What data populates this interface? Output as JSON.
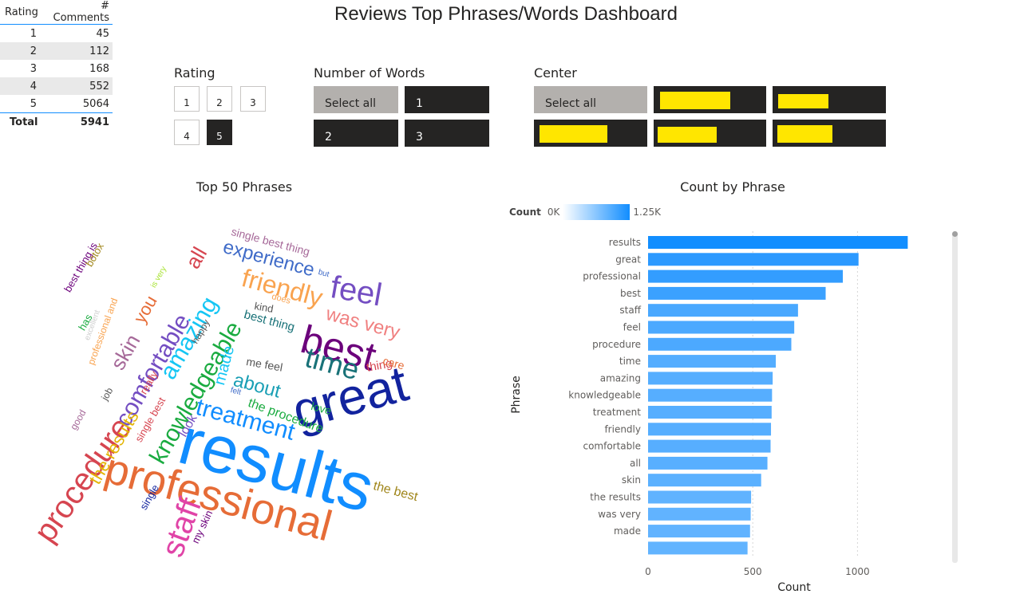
{
  "page_title": "Reviews Top Phrases/Words Dashboard",
  "ratings_table": {
    "headers": [
      "Rating",
      "# Comments"
    ],
    "rows": [
      {
        "rating": "1",
        "count": "45"
      },
      {
        "rating": "2",
        "count": "112"
      },
      {
        "rating": "3",
        "count": "168"
      },
      {
        "rating": "4",
        "count": "552"
      },
      {
        "rating": "5",
        "count": "5064"
      }
    ],
    "total_label": "Total",
    "total_value": "5941"
  },
  "rating_slicer": {
    "title": "Rating",
    "options": [
      "1",
      "2",
      "3",
      "4",
      "5"
    ],
    "selected": "5"
  },
  "words_slicer": {
    "title": "Number of Words",
    "options": [
      "Select all",
      "1",
      "2",
      "3"
    ]
  },
  "center_slicer": {
    "title": "Center",
    "select_all": "Select all",
    "highlight_color": "#ffe600"
  },
  "wordcloud": {
    "title": "Top 50 Phrases",
    "words": [
      {
        "text": "results",
        "color": "#118dff"
      },
      {
        "text": "professional",
        "color": "#e66c37"
      },
      {
        "text": "great",
        "color": "#12239e"
      },
      {
        "text": "best",
        "color": "#6b007b"
      },
      {
        "text": "procedure",
        "color": "#d64550"
      },
      {
        "text": "staff",
        "color": "#e044a7"
      },
      {
        "text": "knowledgeable",
        "color": "#1aab40"
      },
      {
        "text": "comfortable",
        "color": "#744ec2"
      },
      {
        "text": "amazing",
        "color": "#15c6f4"
      },
      {
        "text": "treatment",
        "color": "#118dff"
      },
      {
        "text": "time",
        "color": "#197278"
      },
      {
        "text": "feel",
        "color": "#744ec2"
      },
      {
        "text": "friendly",
        "color": "#f9a34f"
      },
      {
        "text": "experience",
        "color": "#3f6bc8"
      },
      {
        "text": "was very",
        "color": "#f08080"
      },
      {
        "text": "about",
        "color": "#1a9fb5"
      },
      {
        "text": "skin",
        "color": "#a66999"
      },
      {
        "text": "you",
        "color": "#e66c37"
      },
      {
        "text": "all",
        "color": "#d64550"
      },
      {
        "text": "the results",
        "color": "#e3b505"
      },
      {
        "text": "made",
        "color": "#15c6f4"
      },
      {
        "text": "the procedure",
        "color": "#1aab40"
      },
      {
        "text": "me feel",
        "color": "#555555"
      },
      {
        "text": "thing",
        "color": "#d64550"
      },
      {
        "text": "care",
        "color": "#e66c37"
      },
      {
        "text": "the best",
        "color": "#a0861b"
      },
      {
        "text": "love",
        "color": "#1aab40"
      },
      {
        "text": "kind",
        "color": "#555555"
      },
      {
        "text": "best thing",
        "color": "#197278"
      },
      {
        "text": "single best thing",
        "color": "#a66999"
      },
      {
        "text": "but",
        "color": "#3f6bc8"
      },
      {
        "text": "does",
        "color": "#f9a34f"
      },
      {
        "text": "look",
        "color": "#744ec2"
      },
      {
        "text": "single best",
        "color": "#d64550"
      },
      {
        "text": "really",
        "color": "#d64550"
      },
      {
        "text": "happy",
        "color": "#555555"
      },
      {
        "text": "job",
        "color": "#555555"
      },
      {
        "text": "good",
        "color": "#a66999"
      },
      {
        "text": "single",
        "color": "#12239e"
      },
      {
        "text": "my skin",
        "color": "#6b007b"
      },
      {
        "text": "felt",
        "color": "#3f6bc8"
      },
      {
        "text": "has",
        "color": "#1aab40"
      },
      {
        "text": "excellent",
        "color": "#cfcfcf"
      },
      {
        "text": "professional and",
        "color": "#f9a34f"
      },
      {
        "text": "is very",
        "color": "#a6e22e"
      },
      {
        "text": "best thing is",
        "color": "#6b007b"
      },
      {
        "text": "botox",
        "color": "#a0861b"
      }
    ]
  },
  "bar_chart": {
    "title": "Count by Phrase",
    "legend": {
      "label": "Count",
      "min_label": "0K",
      "max_label": "1.25K"
    }
  },
  "chart_data": {
    "type": "bar",
    "orientation": "horizontal",
    "title": "Count by Phrase",
    "xlabel": "Count",
    "ylabel": "Phrase",
    "xlim": [
      0,
      1250
    ],
    "xticks": [
      "0",
      "500",
      "1000"
    ],
    "categories": [
      "results",
      "great",
      "professional",
      "best",
      "staff",
      "feel",
      "procedure",
      "time",
      "amazing",
      "knowledgeable",
      "treatment",
      "friendly",
      "comfortable",
      "all",
      "skin",
      "the results",
      "was very",
      "made",
      ""
    ],
    "values": [
      1240,
      1005,
      930,
      848,
      716,
      698,
      684,
      610,
      595,
      592,
      590,
      587,
      585,
      570,
      540,
      492,
      490,
      487,
      475
    ],
    "color_scale": {
      "min_color": "#ffffff",
      "max_color": "#118dff"
    }
  }
}
